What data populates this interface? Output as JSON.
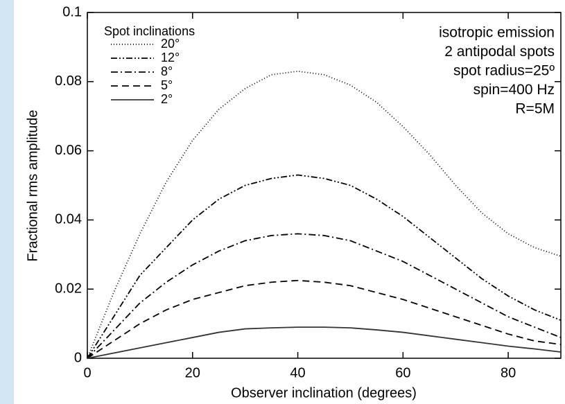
{
  "chart_data": {
    "type": "line",
    "xlabel": "Observer inclination (degrees)",
    "ylabel": "Fractional rms amplitude",
    "legend_title": "Spot inclinations",
    "annotations": [
      "isotropic emission",
      "2 antipodal spots",
      "spot radius=25º",
      "spin=400 Hz",
      "R=5M"
    ],
    "x": [
      0,
      5,
      10,
      15,
      20,
      25,
      30,
      35,
      40,
      45,
      50,
      55,
      60,
      65,
      70,
      75,
      80,
      85,
      90
    ],
    "series": [
      {
        "name": "20°",
        "color": "#000000",
        "dash": "1,3",
        "values": [
          0,
          0.019,
          0.036,
          0.051,
          0.063,
          0.072,
          0.078,
          0.082,
          0.083,
          0.082,
          0.079,
          0.074,
          0.067,
          0.059,
          0.05,
          0.042,
          0.036,
          0.032,
          0.0295
        ]
      },
      {
        "name": "12°",
        "color": "#000000",
        "dash": "9,3,2,3,2,3",
        "values": [
          0,
          0.012,
          0.024,
          0.032,
          0.04,
          0.046,
          0.05,
          0.052,
          0.053,
          0.052,
          0.05,
          0.046,
          0.041,
          0.035,
          0.029,
          0.023,
          0.018,
          0.014,
          0.011
        ]
      },
      {
        "name": "8°",
        "color": "#000000",
        "dash": "10,4,2,4",
        "values": [
          0,
          0.008,
          0.016,
          0.022,
          0.027,
          0.031,
          0.034,
          0.0355,
          0.036,
          0.0355,
          0.034,
          0.031,
          0.028,
          0.024,
          0.02,
          0.016,
          0.012,
          0.009,
          0.006
        ]
      },
      {
        "name": "5°",
        "color": "#000000",
        "dash": "10,6",
        "values": [
          0,
          0.005,
          0.01,
          0.014,
          0.017,
          0.019,
          0.021,
          0.022,
          0.0225,
          0.022,
          0.021,
          0.019,
          0.017,
          0.0145,
          0.012,
          0.0095,
          0.007,
          0.005,
          0.004
        ]
      },
      {
        "name": "2°",
        "color": "#333333",
        "dash": "none",
        "values": [
          0,
          0.0015,
          0.003,
          0.0045,
          0.006,
          0.0075,
          0.0085,
          0.0088,
          0.009,
          0.009,
          0.0088,
          0.0082,
          0.0075,
          0.0065,
          0.0055,
          0.0045,
          0.0035,
          0.0027,
          0.0018
        ]
      }
    ],
    "xlim": [
      0,
      90
    ],
    "xticks": [
      0,
      20,
      40,
      60,
      80
    ],
    "ylim": [
      0,
      0.1
    ],
    "yticks": [
      0,
      0.02,
      0.04,
      0.06,
      0.08,
      0.1
    ],
    "grid": false
  }
}
